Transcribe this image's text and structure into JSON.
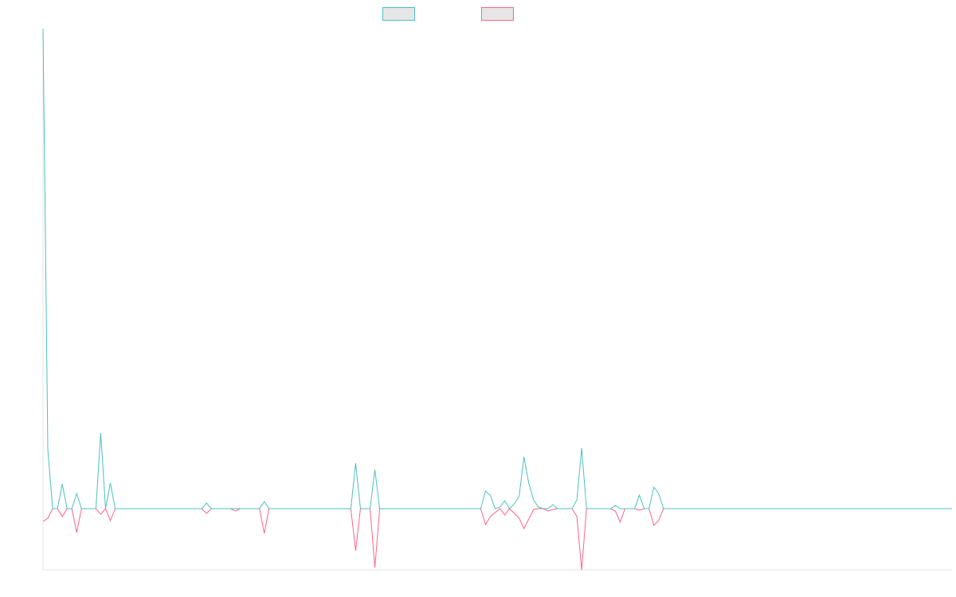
{
  "chart_data": {
    "type": "line",
    "categories": [
      null,
      null,
      null,
      null,
      null,
      null,
      null,
      null,
      null,
      null,
      null,
      null,
      null,
      null,
      null,
      null,
      null,
      null,
      null,
      null,
      null,
      null,
      null,
      null,
      null,
      null,
      null,
      null,
      null,
      null,
      null,
      null,
      null,
      null,
      null,
      null,
      null,
      null,
      null,
      null,
      null,
      null,
      null,
      null,
      null,
      null,
      null,
      null,
      null,
      null,
      null,
      null,
      null,
      null,
      null,
      null,
      null,
      null,
      null,
      null,
      null,
      null,
      null,
      null,
      null,
      null,
      null,
      null,
      null,
      null,
      null,
      null,
      null,
      null,
      null,
      null,
      null,
      null,
      null,
      null,
      null,
      null,
      null,
      null,
      null,
      null,
      null,
      null,
      null,
      null,
      null,
      null,
      null,
      null,
      null,
      null,
      null,
      null,
      null,
      null,
      null,
      null,
      null,
      null,
      null,
      null,
      null,
      null,
      null,
      null,
      null,
      null,
      null,
      null,
      null,
      null,
      null,
      null,
      null,
      null,
      null,
      null,
      null,
      null,
      null,
      null,
      null,
      null,
      null,
      null,
      null,
      null,
      null,
      null,
      null,
      null,
      null,
      null,
      null,
      null,
      null,
      null,
      null,
      null,
      null,
      null,
      null,
      null,
      null,
      null,
      null,
      null,
      null,
      null,
      null,
      null,
      null,
      null,
      null,
      null,
      null,
      null,
      null,
      null,
      null,
      null,
      null,
      null,
      null,
      null,
      null,
      null,
      null,
      null,
      null,
      null,
      null,
      null,
      null,
      null,
      null,
      null,
      null,
      null,
      null,
      null,
      null,
      null,
      null,
      null
    ],
    "series": [
      {
        "color": "#4bc0c0",
        "values": [
          603,
          74,
          0,
          0,
          31,
          0,
          0,
          19,
          0,
          0,
          0,
          0,
          95,
          0,
          32,
          0,
          0,
          0,
          0,
          0,
          0,
          0,
          0,
          0,
          0,
          0,
          0,
          0,
          0,
          0,
          0,
          0,
          0,
          0,
          7,
          0,
          0,
          0,
          0,
          0,
          0,
          0,
          0,
          0,
          0,
          0,
          9,
          0,
          0,
          0,
          0,
          0,
          0,
          0,
          0,
          0,
          0,
          0,
          0,
          0,
          0,
          0,
          0,
          0,
          0,
          57,
          0,
          0,
          0,
          49,
          0,
          0,
          0,
          0,
          0,
          0,
          0,
          0,
          0,
          0,
          0,
          0,
          0,
          0,
          0,
          0,
          0,
          0,
          0,
          0,
          0,
          0,
          22,
          17,
          0,
          2,
          10,
          0,
          6,
          16,
          65,
          32,
          11,
          2,
          0,
          0,
          5,
          0,
          0,
          0,
          0,
          11,
          76,
          0,
          0,
          0,
          0,
          0,
          0,
          4,
          0,
          0,
          0,
          0,
          17,
          0,
          0,
          27,
          19,
          0,
          0,
          0,
          0,
          0,
          0,
          0,
          0,
          0,
          0,
          0,
          0,
          0,
          0,
          0,
          0,
          0,
          0,
          0,
          0,
          0,
          0,
          0,
          0,
          0,
          0,
          0,
          0,
          0,
          0,
          0,
          0,
          0,
          0,
          0,
          0,
          0,
          0,
          0,
          0,
          0,
          0,
          0,
          0,
          0,
          0,
          0,
          0,
          0,
          0,
          0,
          0,
          0,
          0,
          0,
          0,
          0,
          0,
          0,
          0,
          0
        ]
      },
      {
        "color": "#ff6384",
        "values": [
          -16,
          -12,
          0,
          0,
          -10,
          0,
          0,
          -30,
          0,
          0,
          0,
          0,
          -7,
          0,
          -15,
          0,
          0,
          0,
          0,
          0,
          0,
          0,
          0,
          0,
          0,
          0,
          0,
          0,
          0,
          0,
          0,
          0,
          0,
          0,
          -6,
          0,
          0,
          0,
          0,
          0,
          -3,
          0,
          0,
          0,
          0,
          0,
          -31,
          0,
          0,
          0,
          0,
          0,
          0,
          0,
          0,
          0,
          0,
          0,
          0,
          0,
          0,
          0,
          0,
          0,
          0,
          -53,
          0,
          0,
          0,
          -74,
          0,
          0,
          0,
          0,
          0,
          0,
          0,
          0,
          0,
          0,
          0,
          0,
          0,
          0,
          0,
          0,
          0,
          0,
          0,
          0,
          0,
          0,
          -20,
          -10,
          -5,
          0,
          -8,
          0,
          -6,
          -12,
          -25,
          -13,
          -1,
          0,
          0,
          -3,
          -1,
          0,
          0,
          0,
          0,
          -10,
          -77,
          0,
          0,
          0,
          0,
          0,
          0,
          -3,
          -17,
          0,
          0,
          0,
          -2,
          0,
          0,
          -21,
          -15,
          0,
          0,
          0,
          0,
          0,
          0,
          0,
          0,
          0,
          0,
          0,
          0,
          0,
          0,
          0,
          0,
          0,
          0,
          0,
          0,
          0,
          0,
          0,
          0,
          0,
          0,
          0,
          0,
          0,
          0,
          0,
          0,
          0,
          0,
          0,
          0,
          0,
          0,
          0,
          0,
          0,
          0,
          0,
          0,
          0,
          0,
          0,
          0,
          0,
          0,
          0,
          0,
          0,
          0,
          0,
          0,
          0,
          0,
          0,
          0,
          0
        ]
      }
    ],
    "ylim": [
      -77,
      603
    ]
  }
}
